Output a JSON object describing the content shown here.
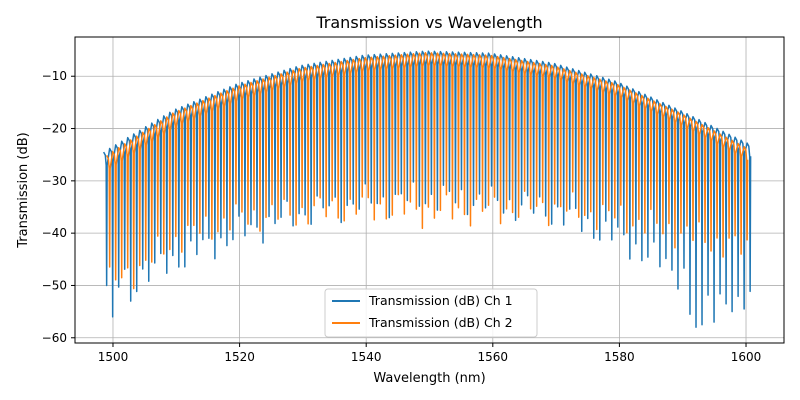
{
  "chart_data": {
    "type": "line",
    "title": "Transmission vs Wavelength",
    "xlabel": "Wavelength (nm)",
    "ylabel": "Transmission (dB)",
    "xlim": [
      1494,
      1606
    ],
    "ylim": [
      -61,
      -2.5
    ],
    "xticks": [
      1500,
      1520,
      1540,
      1560,
      1580,
      1600
    ],
    "yticks": [
      -60,
      -50,
      -40,
      -30,
      -20,
      -10
    ],
    "grid": true,
    "legend_position": "bottom-center",
    "x_start": 1499,
    "x_end": 1601,
    "ripple_period_nm": 0.95,
    "series": [
      {
        "name": "Transmission (dB) Ch 1",
        "color": "#1f77b4",
        "envelope_top": [
          {
            "x": 1499,
            "y": -24.5
          },
          {
            "x": 1510,
            "y": -16.5
          },
          {
            "x": 1520,
            "y": -11.5
          },
          {
            "x": 1530,
            "y": -8
          },
          {
            "x": 1540,
            "y": -6
          },
          {
            "x": 1550,
            "y": -5.2
          },
          {
            "x": 1560,
            "y": -5.6
          },
          {
            "x": 1570,
            "y": -7.5
          },
          {
            "x": 1580,
            "y": -11
          },
          {
            "x": 1590,
            "y": -16.5
          },
          {
            "x": 1601,
            "y": -23
          }
        ],
        "envelope_bottom": [
          {
            "x": 1499,
            "y": -50
          },
          {
            "x": 1505,
            "y": -48
          },
          {
            "x": 1510,
            "y": -45
          },
          {
            "x": 1520,
            "y": -40
          },
          {
            "x": 1530,
            "y": -36
          },
          {
            "x": 1540,
            "y": -34
          },
          {
            "x": 1550,
            "y": -33
          },
          {
            "x": 1560,
            "y": -34
          },
          {
            "x": 1570,
            "y": -36
          },
          {
            "x": 1580,
            "y": -41
          },
          {
            "x": 1590,
            "y": -48
          },
          {
            "x": 1601,
            "y": -53
          }
        ],
        "deep_notches": [
          {
            "x": 1500,
            "y": -56
          },
          {
            "x": 1503,
            "y": -53
          },
          {
            "x": 1591,
            "y": -55.5
          },
          {
            "x": 1592,
            "y": -58
          },
          {
            "x": 1593.5,
            "y": -57.5
          },
          {
            "x": 1595,
            "y": -57
          },
          {
            "x": 1598,
            "y": -55
          },
          {
            "x": 1600,
            "y": -54.5
          }
        ]
      },
      {
        "name": "Transmission (dB) Ch 2",
        "color": "#ff7f0e",
        "envelope_top": [
          {
            "x": 1499,
            "y": -25.5
          },
          {
            "x": 1510,
            "y": -17
          },
          {
            "x": 1520,
            "y": -12
          },
          {
            "x": 1530,
            "y": -8.5
          },
          {
            "x": 1540,
            "y": -6.5
          },
          {
            "x": 1550,
            "y": -5.5
          },
          {
            "x": 1560,
            "y": -6
          },
          {
            "x": 1570,
            "y": -8
          },
          {
            "x": 1580,
            "y": -11.5
          },
          {
            "x": 1590,
            "y": -17
          },
          {
            "x": 1601,
            "y": -24
          }
        ],
        "envelope_bottom": [
          {
            "x": 1499,
            "y": -50
          },
          {
            "x": 1505,
            "y": -46
          },
          {
            "x": 1510,
            "y": -41
          },
          {
            "x": 1520,
            "y": -37
          },
          {
            "x": 1530,
            "y": -36
          },
          {
            "x": 1540,
            "y": -35
          },
          {
            "x": 1550,
            "y": -36
          },
          {
            "x": 1560,
            "y": -35.5
          },
          {
            "x": 1570,
            "y": -35
          },
          {
            "x": 1580,
            "y": -37
          },
          {
            "x": 1590,
            "y": -40
          },
          {
            "x": 1601,
            "y": -43.5
          }
        ],
        "deep_notches": []
      }
    ]
  }
}
